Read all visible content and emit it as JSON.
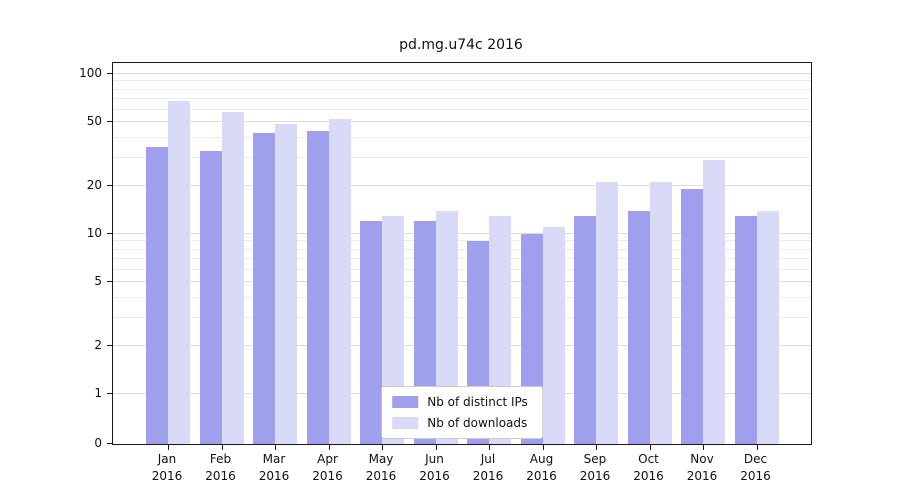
{
  "chart_data": {
    "type": "bar",
    "title": "pd.mg.u74c 2016",
    "xlabel": "",
    "ylabel": "",
    "yscale": "symlog",
    "grid": "horizontal",
    "legend_position": "bottom-center-inside",
    "ylim": [
      0,
      113
    ],
    "yticks": [
      0,
      1,
      2,
      5,
      10,
      20,
      50,
      100
    ],
    "minor_yticks": [
      3,
      4,
      6,
      7,
      8,
      9,
      30,
      40,
      60,
      70,
      80,
      90
    ],
    "categories": [
      "Jan 2016",
      "Feb 2016",
      "Mar 2016",
      "Apr 2016",
      "May 2016",
      "Jun 2016",
      "Jul 2016",
      "Aug 2016",
      "Sep 2016",
      "Oct 2016",
      "Nov 2016",
      "Dec 2016"
    ],
    "series": [
      {
        "name": "Nb of distinct IPs",
        "color": "#9f9fee",
        "values": [
          35,
          33,
          43,
          44,
          12,
          12,
          9,
          10,
          13,
          14,
          19,
          13
        ]
      },
      {
        "name": "Nb of downloads",
        "color": "#d9d9f8",
        "values": [
          68,
          58,
          49,
          52,
          13,
          14,
          13,
          11,
          21,
          21,
          29,
          14
        ]
      }
    ]
  }
}
